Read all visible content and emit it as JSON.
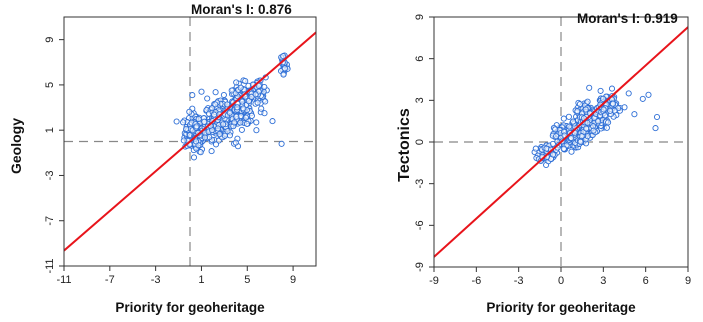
{
  "colors": {
    "points": "#2f6fd6",
    "regression_line": "#e8141b",
    "reference_lines": "#888888",
    "axes": "#333333"
  },
  "chart_data": [
    {
      "type": "scatter",
      "xlabel": "Priority for geoheritage",
      "ylabel": "Geology",
      "annotation": "Moran's I: 0.876",
      "x_ticks": [
        "-11",
        "-7",
        "-3",
        "1",
        "5",
        "9"
      ],
      "y_ticks": [
        "-11",
        "-7",
        "-3",
        "1",
        "5",
        "9"
      ],
      "xlim": [
        -11,
        11
      ],
      "ylim": [
        -11,
        11
      ],
      "reference_lines": {
        "x": 0,
        "y": 0
      },
      "regression_line": {
        "slope": 0.876,
        "intercept": 0
      },
      "clusters": [
        {
          "x_center": 0.5,
          "y_center": 0.8,
          "x_spread": 0.8,
          "y_spread": 1.4,
          "count": 180
        },
        {
          "x_center": 2.5,
          "y_center": 1.8,
          "x_spread": 1.0,
          "y_spread": 1.3,
          "count": 220
        },
        {
          "x_center": 4.5,
          "y_center": 3.2,
          "x_spread": 0.9,
          "y_spread": 1.5,
          "count": 160
        },
        {
          "x_center": 6.0,
          "y_center": 4.2,
          "x_spread": 0.5,
          "y_spread": 1.2,
          "count": 50
        },
        {
          "x_center": 8.2,
          "y_center": 6.8,
          "x_spread": 0.25,
          "y_spread": 1.0,
          "count": 35
        }
      ],
      "extra_points": [
        [
          1.0,
          4.4
        ],
        [
          1.5,
          3.8
        ],
        [
          0.2,
          4.1
        ],
        [
          7.2,
          1.8
        ],
        [
          8.0,
          -0.2
        ],
        [
          6.5,
          2.5
        ],
        [
          5.8,
          1.0
        ],
        [
          4.0,
          -0.1
        ]
      ]
    },
    {
      "type": "scatter",
      "xlabel": "Priority for geoheritage",
      "ylabel": "Tectonics",
      "annotation": "Moran's I: 0.919",
      "x_ticks": [
        "-9",
        "-6",
        "-3",
        "0",
        "3",
        "6",
        "9"
      ],
      "y_ticks": [
        "-9",
        "-6",
        "-3",
        "0",
        "3",
        "6",
        "9"
      ],
      "xlim": [
        -9,
        9
      ],
      "ylim": [
        -9,
        9
      ],
      "reference_lines": {
        "x": 0,
        "y": 0
      },
      "regression_line": {
        "slope": 0.919,
        "intercept": 0
      },
      "clusters": [
        {
          "x_center": -1.0,
          "y_center": -0.8,
          "x_spread": 0.5,
          "y_spread": 0.5,
          "count": 90
        },
        {
          "x_center": 0.5,
          "y_center": 0.4,
          "x_spread": 0.8,
          "y_spread": 0.7,
          "count": 220
        },
        {
          "x_center": 2.0,
          "y_center": 1.6,
          "x_spread": 0.8,
          "y_spread": 0.9,
          "count": 200
        },
        {
          "x_center": 3.2,
          "y_center": 2.6,
          "x_spread": 0.6,
          "y_spread": 0.8,
          "count": 100
        }
      ],
      "extra_points": [
        [
          4.5,
          2.5
        ],
        [
          5.2,
          2.0
        ],
        [
          5.8,
          3.1
        ],
        [
          6.2,
          3.4
        ],
        [
          6.8,
          1.8
        ],
        [
          6.7,
          1.0
        ],
        [
          4.8,
          3.5
        ],
        [
          2.0,
          3.9
        ]
      ]
    }
  ]
}
